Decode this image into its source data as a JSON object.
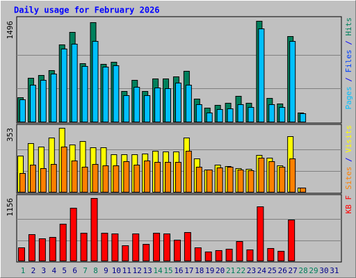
{
  "chart_data": {
    "type": "bar",
    "title": "Daily usage for February 2026",
    "categories": [
      "1",
      "2",
      "3",
      "4",
      "5",
      "6",
      "7",
      "8",
      "9",
      "10",
      "11",
      "12",
      "13",
      "14",
      "15",
      "16",
      "17",
      "18",
      "19",
      "20",
      "21",
      "22",
      "23",
      "24",
      "25",
      "26",
      "27",
      "28",
      "29",
      "30",
      "31"
    ],
    "category_colors": [
      "#00805c",
      "#00008b",
      "#00008b",
      "#00008b",
      "#00008b",
      "#00008b",
      "#00805c",
      "#00805c",
      "#00008b",
      "#00008b",
      "#00008b",
      "#00008b",
      "#00008b",
      "#00805c",
      "#00805c",
      "#00008b",
      "#00008b",
      "#00008b",
      "#00008b",
      "#00008b",
      "#00805c",
      "#00805c",
      "#00008b",
      "#00008b",
      "#00008b",
      "#00008b",
      "#00008b",
      "#00805c",
      "#00805c",
      "#00008b",
      "#00008b"
    ],
    "panels": [
      {
        "legend": [
          {
            "text": "Pages",
            "color": "#00c0ff"
          },
          {
            "text": " / ",
            "color": "#0000ff"
          },
          {
            "text": "Files",
            "color": "#0040ff"
          },
          {
            "text": " / ",
            "color": "#0000ff"
          },
          {
            "text": "Hits",
            "color": "#00805c"
          }
        ],
        "ylim": [
          0,
          1496
        ],
        "yticks": [
          1496
        ],
        "grid": [
          499,
          997
        ],
        "series": [
          {
            "name": "Hits",
            "color": "#00805c",
            "values": [
              369,
              656,
              697,
              768,
              1148,
              1332,
              871,
              1480,
              861,
              891,
              461,
              625,
              461,
              646,
              646,
              676,
              758,
              348,
              215,
              256,
              287,
              389,
              287,
              1496,
              359,
              277,
              1271,
              143,
              null,
              null,
              null
            ]
          },
          {
            "name": "Pages",
            "color": "#00c0ff",
            "values": [
              338,
              553,
              625,
              717,
              1086,
              1158,
              830,
              1199,
              820,
              840,
              400,
              523,
              400,
              512,
              502,
              584,
              553,
              266,
              143,
              195,
              205,
              266,
              225,
              1383,
              266,
              225,
              1199,
              133,
              null,
              null,
              null
            ]
          }
        ]
      },
      {
        "legend": [
          {
            "text": "Sites",
            "color": "#ff8000"
          },
          {
            "text": " / ",
            "color": "#0000ff"
          },
          {
            "text": "Visits",
            "color": "#ffff00"
          }
        ],
        "ylim": [
          0,
          353
        ],
        "yticks": [
          353
        ],
        "grid": [
          118,
          235
        ],
        "series": [
          {
            "name": "Visits",
            "color": "#ffff00",
            "values": [
              201,
              269,
              251,
              300,
              353,
              262,
              281,
              247,
              247,
              209,
              209,
              209,
              213,
              228,
              224,
              224,
              300,
              186,
              125,
              152,
              144,
              133,
              129,
              205,
              190,
              148,
              307,
              27,
              null,
              null,
              null
            ]
          },
          {
            "name": "Sites",
            "color": "#ff8000",
            "values": [
              106,
              152,
              133,
              156,
              251,
              175,
              140,
              156,
              148,
              148,
              171,
              152,
              175,
              167,
              167,
              167,
              228,
              140,
              125,
              137,
              140,
              125,
              121,
              190,
              171,
              140,
              186,
              27,
              null,
              null,
              null
            ]
          }
        ]
      },
      {
        "legend": [
          {
            "text": "KB F",
            "color": "#ff0000"
          }
        ],
        "ylim": [
          0,
          1156
        ],
        "yticks": [
          1156
        ],
        "grid": [
          385,
          770
        ],
        "series": [
          {
            "name": "KB F",
            "color": "#ff0000",
            "values": [
              251,
              490,
              415,
              440,
              691,
              980,
              515,
              1156,
              515,
              503,
              289,
              503,
              314,
              515,
              503,
              390,
              528,
              251,
              176,
              201,
              226,
              364,
              214,
              1005,
              239,
              188,
              766,
              null,
              null,
              null,
              null
            ]
          }
        ]
      }
    ]
  }
}
